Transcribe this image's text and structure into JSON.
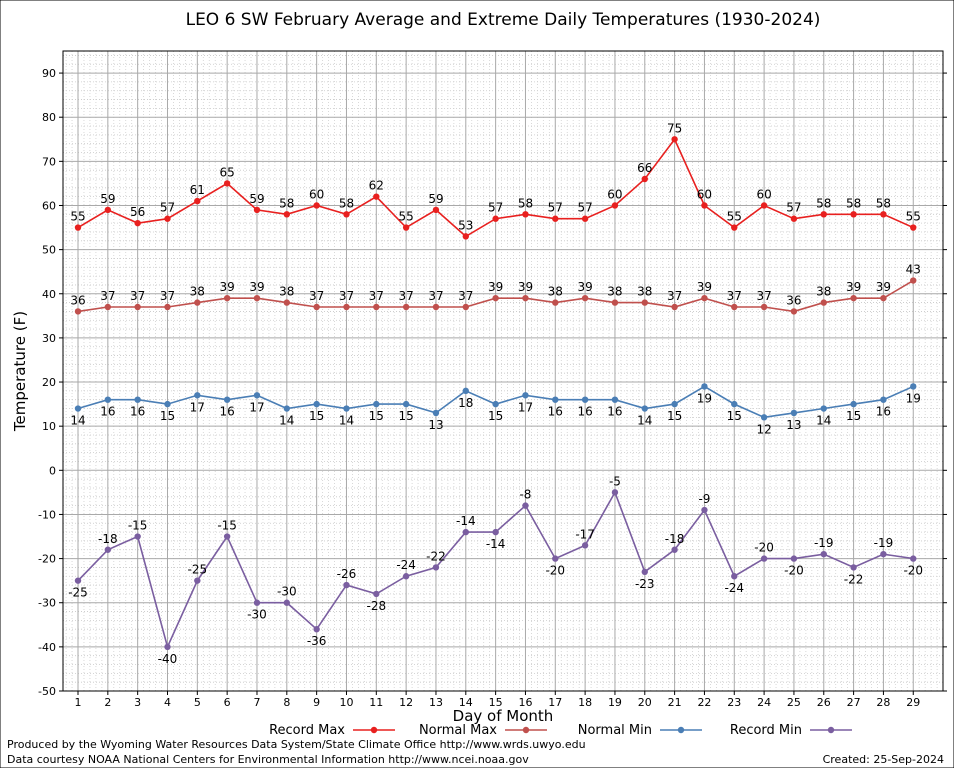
{
  "chart_data": {
    "type": "line",
    "title": "LEO 6 SW February Average and Extreme Daily Temperatures (1930-2024)",
    "xlabel": "Day of Month",
    "ylabel": "Temperature (F)",
    "ylim": [
      -50,
      95
    ],
    "yticks": [
      -50,
      -40,
      -30,
      -20,
      -10,
      0,
      10,
      20,
      30,
      40,
      50,
      60,
      70,
      80,
      90
    ],
    "x": [
      1,
      2,
      3,
      4,
      5,
      6,
      7,
      8,
      9,
      10,
      11,
      12,
      13,
      14,
      15,
      16,
      17,
      18,
      19,
      20,
      21,
      22,
      23,
      24,
      25,
      26,
      27,
      28,
      29
    ],
    "grid": true,
    "legend_position": "bottom",
    "series": [
      {
        "name": "Record Max",
        "color": "#e8201f",
        "values": [
          55,
          59,
          56,
          57,
          61,
          65,
          59,
          58,
          60,
          58,
          62,
          55,
          59,
          53,
          57,
          58,
          57,
          57,
          60,
          66,
          75,
          60,
          55,
          60,
          57,
          58,
          58,
          58,
          55
        ]
      },
      {
        "name": "Normal Max",
        "color": "#c0504d",
        "values": [
          36,
          37,
          37,
          37,
          38,
          39,
          39,
          38,
          37,
          37,
          37,
          37,
          37,
          37,
          39,
          39,
          38,
          39,
          38,
          38,
          37,
          39,
          37,
          37,
          36,
          38,
          39,
          39,
          43
        ]
      },
      {
        "name": "Normal Min",
        "color": "#4a7eb5",
        "values": [
          14,
          16,
          16,
          15,
          17,
          16,
          17,
          14,
          15,
          14,
          15,
          15,
          13,
          18,
          15,
          17,
          16,
          16,
          16,
          14,
          15,
          19,
          15,
          12,
          13,
          14,
          15,
          16,
          19
        ]
      },
      {
        "name": "Record Min",
        "color": "#7a5ea0",
        "values": [
          -25,
          -18,
          -15,
          -40,
          -25,
          -15,
          -30,
          -30,
          -36,
          -26,
          -28,
          -24,
          -22,
          -14,
          -14,
          -8,
          -20,
          -17,
          -5,
          -23,
          -18,
          -9,
          -24,
          -20,
          -20,
          -19,
          -22,
          -19,
          -20
        ]
      }
    ]
  },
  "footer": {
    "producer": "Produced by the Wyoming Water Resources Data System/State Climate Office http://www.wrds.uwyo.edu",
    "courtesy": "Data courtesy NOAA National Centers for Environmental Information http://www.ncei.noaa.gov",
    "created": "Created:  25-Sep-2024"
  }
}
